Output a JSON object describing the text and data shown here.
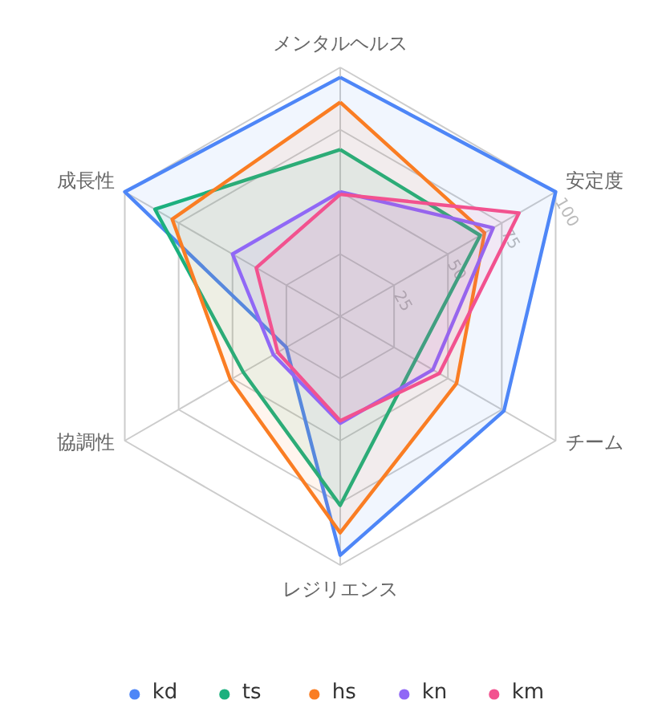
{
  "chart_data": {
    "type": "radar",
    "categories": [
      "メンタルヘルス",
      "安定度",
      "チーム",
      "レジリエンス",
      "協調性",
      "成長性"
    ],
    "ylim": [
      0,
      100
    ],
    "yticks": [
      25,
      50,
      75,
      100
    ],
    "grid": true,
    "legend": "bottom",
    "series": [
      {
        "name": "kd",
        "color": "#4e86f7",
        "values": [
          96,
          100,
          76,
          96,
          25,
          100
        ]
      },
      {
        "name": "ts",
        "color": "#1bb07e",
        "values": [
          67,
          65,
          35,
          76,
          45,
          86
        ]
      },
      {
        "name": "hs",
        "color": "#fa7d23",
        "values": [
          86,
          67,
          54,
          87,
          51,
          78
        ]
      },
      {
        "name": "kn",
        "color": "#9068f6",
        "values": [
          50,
          71,
          43,
          43,
          31,
          50
        ]
      },
      {
        "name": "km",
        "color": "#f2528f",
        "values": [
          49,
          83,
          46,
          42,
          29,
          39
        ]
      }
    ]
  }
}
